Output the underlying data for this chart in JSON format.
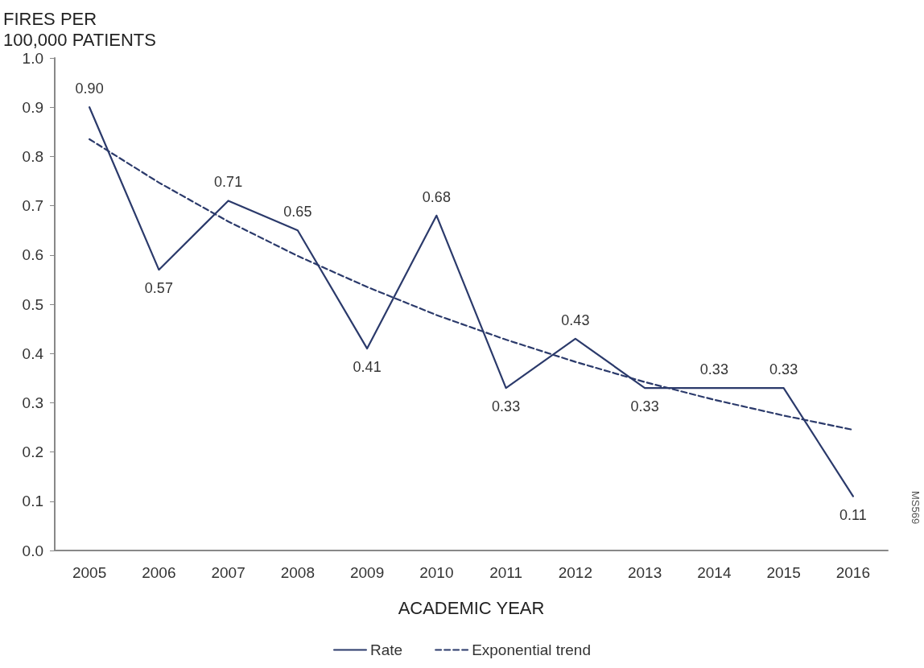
{
  "chart_data": {
    "type": "line",
    "ylabel": "FIRES PER\n100,000 PATIENTS",
    "xlabel": "ACADEMIC YEAR",
    "categories": [
      "2005",
      "2006",
      "2007",
      "2008",
      "2009",
      "2010",
      "2011",
      "2012",
      "2013",
      "2014",
      "2015",
      "2016"
    ],
    "series": [
      {
        "name": "Rate",
        "color": "#2b3a6b",
        "line_style": "solid",
        "values": [
          0.9,
          0.57,
          0.71,
          0.65,
          0.41,
          0.68,
          0.33,
          0.43,
          0.33,
          0.33,
          0.33,
          0.11
        ],
        "value_labels": [
          "0.90",
          "0.57",
          "0.71",
          "0.65",
          "0.41",
          "0.68",
          "0.33",
          "0.43",
          "0.33",
          "0.33",
          "0.33",
          "0.11"
        ]
      },
      {
        "name": "Exponential trend",
        "color": "#2b3a6b",
        "line_style": "dashed",
        "values": [
          0.835,
          0.747,
          0.668,
          0.598,
          0.535,
          0.478,
          0.428,
          0.383,
          0.342,
          0.306,
          0.274,
          0.245
        ]
      }
    ],
    "ylim": [
      0,
      1
    ],
    "yticks": [
      {
        "value": 0,
        "label": "0.0"
      },
      {
        "value": 0.1,
        "label": "0.1"
      },
      {
        "value": 0.2,
        "label": "0.2"
      },
      {
        "value": 0.3,
        "label": "0.3"
      },
      {
        "value": 0.4,
        "label": "0.4"
      },
      {
        "value": 0.5,
        "label": "0.5"
      },
      {
        "value": 0.6,
        "label": "0.6"
      },
      {
        "value": 0.7,
        "label": "0.7"
      },
      {
        "value": 0.8,
        "label": "0.8"
      },
      {
        "value": 0.9,
        "label": "0.9"
      },
      {
        "value": 1,
        "label": "1.0"
      }
    ],
    "grid": false,
    "legend": "bottom",
    "marker": "none",
    "annotations": [
      "MS569"
    ]
  }
}
